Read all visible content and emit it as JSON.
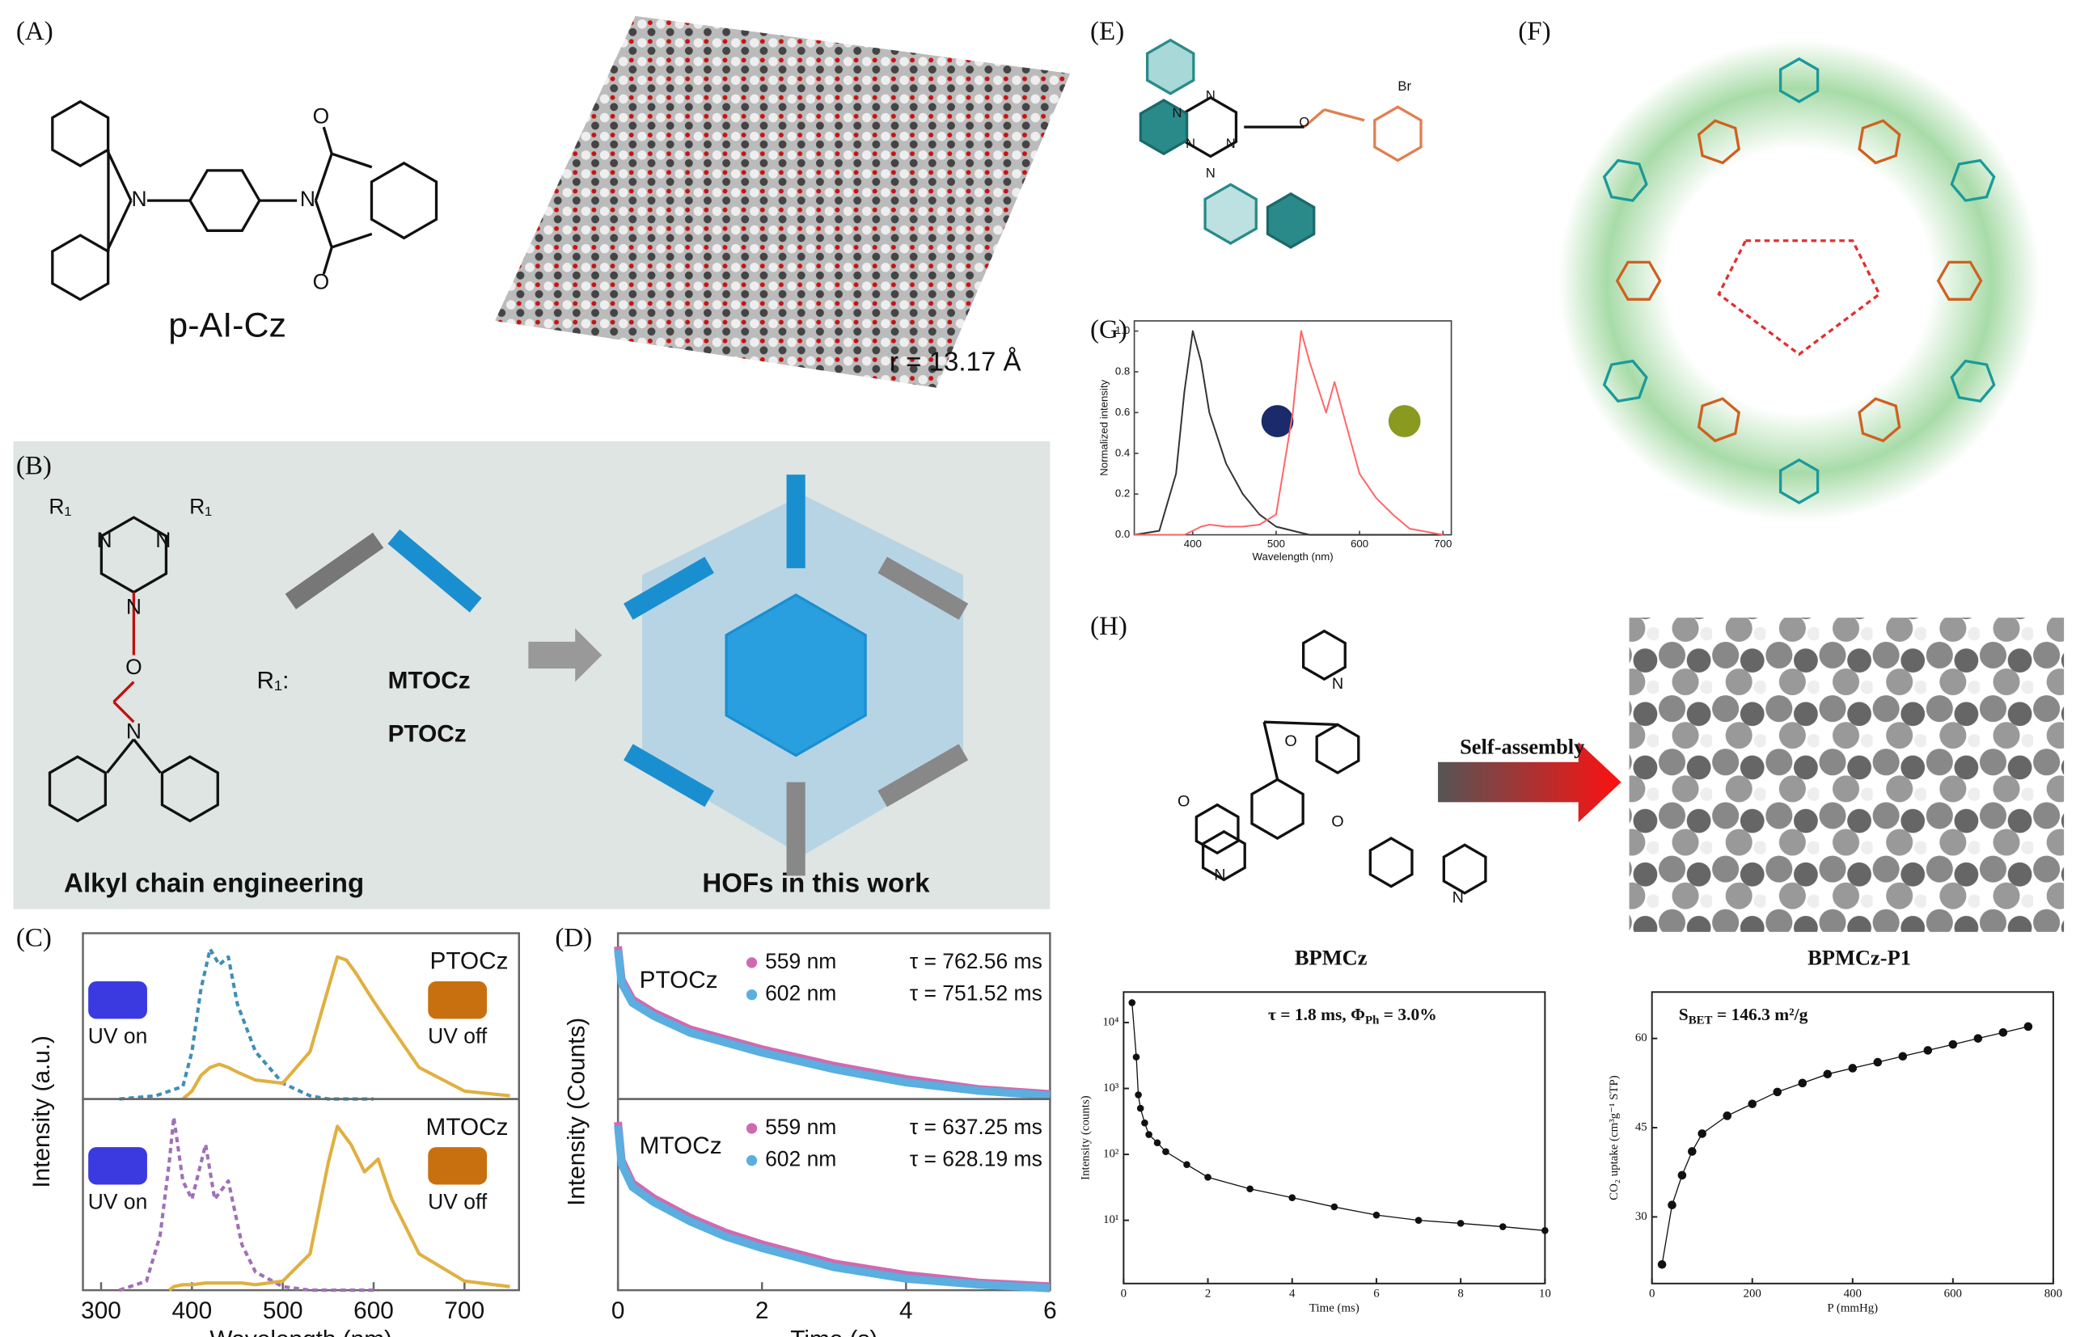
{
  "figure": {
    "panel_labels": [
      "(A)",
      "(B)",
      "(C)",
      "(D)",
      "(E)",
      "(F)",
      "(G)",
      "(H)"
    ],
    "A": {
      "compound": "p-AI-Cz",
      "radius": "r = 13.17 Å",
      "atoms": [
        "N",
        "N",
        "O",
        "O"
      ]
    },
    "B": {
      "atoms": [
        "R₁",
        "R₁",
        "N",
        "N",
        "N",
        "O",
        "N"
      ],
      "substituent": "R₁:",
      "compounds": [
        "MTOCz",
        "PTOCz"
      ],
      "left_caption": "Alkyl chain engineering",
      "right_caption": "HOFs in this work"
    },
    "E": {
      "atoms": [
        "N",
        "N",
        "N",
        "N",
        "N",
        "O",
        "Br"
      ]
    },
    "H": {
      "compound": "BPMCz",
      "arrow": "Self-assembly",
      "crystal": "BPMCz-P1",
      "atoms": [
        "N",
        "N",
        "N",
        "O",
        "O",
        "O"
      ]
    }
  },
  "chart_data": [
    {
      "type": "line",
      "label": "PTOCz",
      "insets": [
        "UV on",
        "UV off"
      ],
      "y_label": "Intensity (a.u.)",
      "x": [
        320,
        360,
        390,
        400,
        410,
        420,
        430,
        440,
        450,
        470,
        500,
        530,
        550,
        560,
        570,
        580,
        600,
        620,
        650,
        700,
        750
      ],
      "xlim": [
        280,
        760
      ],
      "ylim": [
        0,
        1.05
      ],
      "series": [
        {
          "color": "#3f8fb5",
          "dashed": true,
          "values": [
            0,
            0.02,
            0.08,
            0.3,
            0.7,
            0.95,
            0.85,
            0.9,
            0.6,
            0.3,
            0.1,
            0.02,
            0,
            0,
            0,
            0,
            0,
            null,
            null,
            null,
            null
          ]
        },
        {
          "color": "#e0b040",
          "dashed": false,
          "values": [
            null,
            null,
            0,
            0.05,
            0.15,
            0.2,
            0.22,
            0.2,
            0.17,
            0.12,
            0.1,
            0.3,
            0.7,
            0.9,
            0.88,
            0.8,
            0.62,
            0.45,
            0.2,
            0.05,
            0.02
          ]
        }
      ]
    },
    {
      "type": "line",
      "label": "MTOCz",
      "insets": [
        "UV on",
        "UV off"
      ],
      "x_label": "Wavelength (nm)",
      "x": [
        320,
        350,
        365,
        375,
        380,
        390,
        400,
        415,
        425,
        440,
        455,
        470,
        500,
        530,
        550,
        560,
        575,
        590,
        605,
        620,
        650,
        700,
        750
      ],
      "xlim": [
        280,
        760
      ],
      "ylim": [
        0,
        1.05
      ],
      "xticks": [
        300,
        400,
        500,
        600,
        700
      ],
      "series": [
        {
          "color": "#a070b8",
          "dashed": true,
          "values": [
            0,
            0.05,
            0.3,
            0.7,
            0.95,
            0.6,
            0.5,
            0.8,
            0.5,
            0.6,
            0.25,
            0.1,
            0.02,
            0,
            0,
            0,
            0,
            0,
            0,
            null,
            null,
            null,
            null
          ]
        },
        {
          "color": "#e0b040",
          "dashed": false,
          "values": [
            null,
            null,
            null,
            0,
            0.02,
            0.03,
            0.03,
            0.04,
            0.04,
            0.04,
            0.04,
            0.03,
            0.05,
            0.2,
            0.7,
            0.9,
            0.8,
            0.65,
            0.72,
            0.5,
            0.2,
            0.05,
            0.02
          ]
        }
      ]
    },
    {
      "type": "line",
      "label": "PTOCz",
      "y_label": "Intensity (Counts)",
      "x": [
        0,
        0.05,
        0.2,
        0.5,
        1,
        1.5,
        2,
        3,
        4,
        5,
        6
      ],
      "xlim": [
        0,
        6
      ],
      "ylim": [
        0,
        1
      ],
      "series": [
        {
          "name": "559 nm",
          "lifetime": "τ = 762.56 ms",
          "color": "#d06ab0",
          "values": [
            0.92,
            0.72,
            0.6,
            0.52,
            0.42,
            0.36,
            0.3,
            0.2,
            0.12,
            0.06,
            0.03
          ]
        },
        {
          "name": "602 nm",
          "lifetime": "τ = 751.52 ms",
          "color": "#5aaee0",
          "values": [
            0.9,
            0.7,
            0.58,
            0.5,
            0.4,
            0.34,
            0.28,
            0.18,
            0.1,
            0.05,
            0.02
          ]
        }
      ]
    },
    {
      "type": "line",
      "label": "MTOCz",
      "x_label": "Time (s)",
      "x": [
        0,
        0.05,
        0.2,
        0.5,
        1,
        1.5,
        2,
        3,
        4,
        5,
        6
      ],
      "xlim": [
        0,
        6
      ],
      "ylim": [
        0,
        1
      ],
      "xticks": [
        0,
        2,
        4,
        6
      ],
      "series": [
        {
          "name": "559 nm",
          "lifetime": "τ = 637.25 ms",
          "color": "#d06ab0",
          "values": [
            0.88,
            0.68,
            0.56,
            0.48,
            0.38,
            0.3,
            0.24,
            0.14,
            0.08,
            0.04,
            0.02
          ]
        },
        {
          "name": "602 nm",
          "lifetime": "τ = 628.19 ms",
          "color": "#5aaee0",
          "values": [
            0.86,
            0.66,
            0.54,
            0.46,
            0.36,
            0.28,
            0.22,
            0.12,
            0.06,
            0.03,
            0.01
          ]
        }
      ]
    },
    {
      "type": "line",
      "x_label": "Wavelength (nm)",
      "y_label": "Normalized intensity",
      "x": [
        330,
        360,
        380,
        390,
        400,
        410,
        420,
        440,
        460,
        480,
        500,
        520,
        530,
        540,
        560,
        570,
        580,
        600,
        620,
        640,
        660,
        700
      ],
      "xlim": [
        330,
        710
      ],
      "ylim": [
        0,
        1.05
      ],
      "xticks": [
        400,
        500,
        600,
        700
      ],
      "yticks": [
        {
          "value": 0,
          "label": "0.0"
        },
        0.2,
        0.4,
        0.6,
        0.8,
        {
          "value": 1,
          "label": "1.0"
        }
      ],
      "series": [
        {
          "color": "#333333",
          "values": [
            0,
            0.02,
            0.3,
            0.7,
            1.0,
            0.85,
            0.6,
            0.35,
            0.2,
            0.1,
            0.04,
            0.02,
            0.01,
            0,
            0,
            0,
            0,
            0,
            0,
            0,
            0,
            0
          ]
        },
        {
          "color": "#ff6666",
          "values": [
            0,
            0,
            0,
            0,
            0.02,
            0.04,
            0.05,
            0.04,
            0.04,
            0.05,
            0.1,
            0.6,
            1.0,
            0.85,
            0.6,
            0.75,
            0.6,
            0.3,
            0.18,
            0.1,
            0.03,
            0
          ]
        }
      ]
    },
    {
      "type": "scatter",
      "x_label": "Time (ms)",
      "y_label": "Intensity (counts)",
      "log_y": true,
      "annotation": [
        "τ = 1.8 ms, Φ",
        "Ph",
        " = 3.0%"
      ],
      "x": [
        0.2,
        0.3,
        0.35,
        0.4,
        0.5,
        0.6,
        0.8,
        1,
        1.5,
        2,
        3,
        4,
        5,
        6,
        7,
        8,
        9,
        10
      ],
      "xlim": [
        0,
        10
      ],
      "ylim": [
        1.1,
        29000
      ],
      "xticks": [
        0,
        2,
        4,
        6,
        8,
        10
      ],
      "yticks": [
        {
          "value": 10,
          "label": "10¹"
        },
        {
          "value": 100,
          "label": "10²"
        },
        {
          "value": 1000,
          "label": "10³"
        },
        {
          "value": 10000,
          "label": "10⁴"
        }
      ],
      "series": [
        {
          "color": "#111111",
          "values": [
            20000,
            3000,
            800,
            500,
            300,
            200,
            150,
            110,
            70,
            45,
            30,
            22,
            16,
            12,
            10,
            9,
            8,
            7
          ]
        }
      ]
    },
    {
      "type": "scatter",
      "x_label": "P (mmHg)",
      "y_label": "CO₂ uptake (cm³g⁻¹ STP)",
      "annotation": [
        "S",
        "BET",
        " = 146.3 m²/g"
      ],
      "x": [
        20,
        40,
        60,
        80,
        100,
        150,
        200,
        250,
        300,
        350,
        400,
        450,
        500,
        550,
        600,
        650,
        700,
        750
      ],
      "xlim": [
        0,
        800
      ],
      "ylim": [
        18.8,
        67.8
      ],
      "xticks": [
        0,
        200,
        400,
        600,
        800
      ],
      "yticks": [
        30,
        45,
        60
      ],
      "series": [
        {
          "color": "#111111",
          "values": [
            22,
            32,
            37,
            41,
            44,
            47,
            49,
            51,
            52.5,
            54,
            55,
            56,
            57,
            58,
            59,
            60,
            61,
            62
          ]
        }
      ]
    }
  ]
}
